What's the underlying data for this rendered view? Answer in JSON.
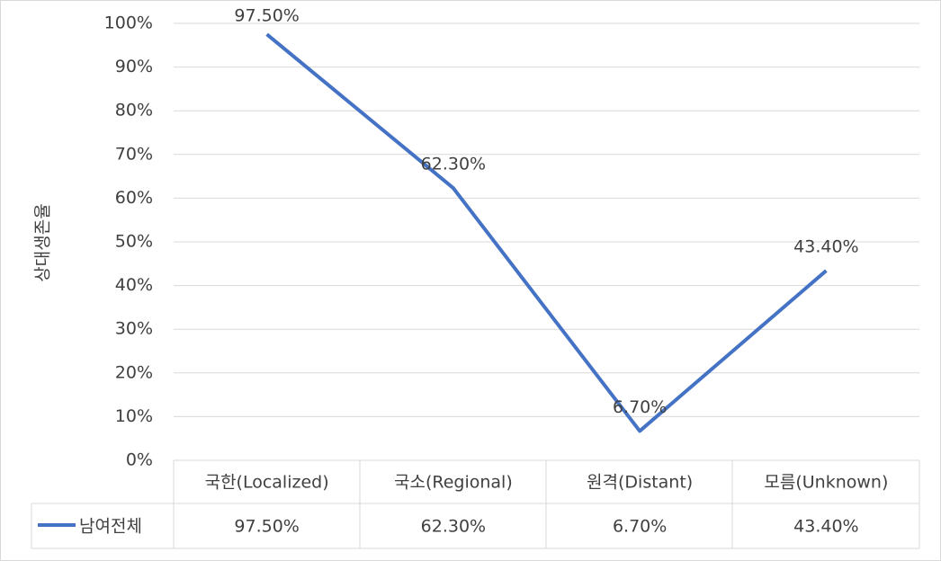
{
  "chart_data": {
    "type": "line",
    "y_axis_label": "상대생존율",
    "categories": [
      "국한(Localized)",
      "국소(Regional)",
      "원격(Distant)",
      "모름(Unknown)"
    ],
    "series": [
      {
        "name": "남여전체",
        "color": "#4472c4",
        "values": [
          97.5,
          62.3,
          6.7,
          43.4
        ],
        "value_labels": [
          "97.50%",
          "62.30%",
          "6.70%",
          "43.40%"
        ]
      }
    ],
    "ylim": [
      0,
      100
    ],
    "yticks": [
      {
        "value": 0,
        "label": "0%"
      },
      {
        "value": 10,
        "label": "10%"
      },
      {
        "value": 20,
        "label": "20%"
      },
      {
        "value": 30,
        "label": "30%"
      },
      {
        "value": 40,
        "label": "40%"
      },
      {
        "value": 50,
        "label": "50%"
      },
      {
        "value": 60,
        "label": "60%"
      },
      {
        "value": 70,
        "label": "70%"
      },
      {
        "value": 80,
        "label": "80%"
      },
      {
        "value": 90,
        "label": "90%"
      },
      {
        "value": 100,
        "label": "100%"
      }
    ],
    "grid": true,
    "data_table": true
  }
}
